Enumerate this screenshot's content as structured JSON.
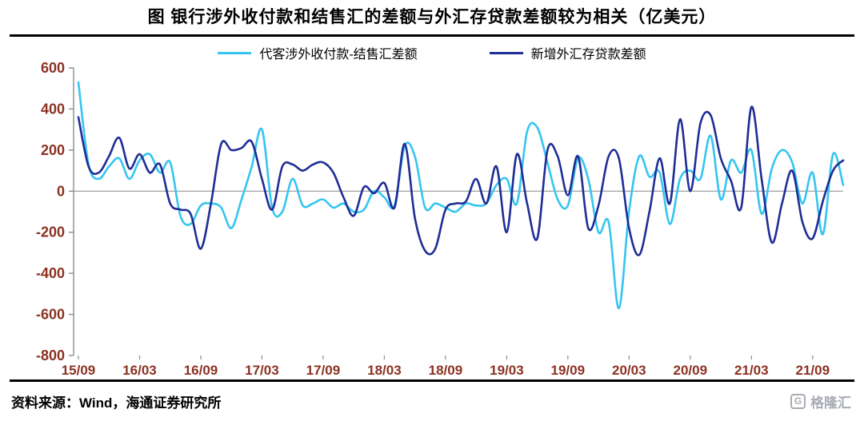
{
  "title": "图  银行涉外收付款和结售汇的差额与外汇存贷款差额较为相关（亿美元）",
  "source_note": "资料来源：Wind，海通证券研究所",
  "watermark": "格隆汇",
  "legend": [
    {
      "label": "代客涉外收付款-结售汇差额",
      "color": "#35C5F0"
    },
    {
      "label": "新增外汇存贷款差额",
      "color": "#1E2D96"
    }
  ],
  "colors": {
    "axis_label": "#8B3222",
    "axis_line": "#8C8C8C",
    "zero_line": "#A6A6A6",
    "series_cyan": "#35C5F0",
    "series_navy": "#1E2D96",
    "watermark_gray": "#A7ABB2"
  },
  "chart_data": {
    "type": "line",
    "title": "银行涉外收付款和结售汇的差额与外汇存贷款差额较为相关",
    "unit": "亿美元",
    "xlabel": "",
    "ylabel": "",
    "ylim": [
      -800,
      600
    ],
    "y_ticks": [
      600,
      400,
      200,
      0,
      -200,
      -400,
      -600,
      -800
    ],
    "grid": false,
    "legend_position": "top",
    "x_tick_labels": [
      "15/09",
      "16/03",
      "16/09",
      "17/03",
      "17/09",
      "18/03",
      "18/09",
      "19/03",
      "19/09",
      "20/03",
      "20/09",
      "21/03",
      "21/09"
    ],
    "x": [
      "15/09",
      "15/10",
      "15/11",
      "15/12",
      "16/01",
      "16/02",
      "16/03",
      "16/04",
      "16/05",
      "16/06",
      "16/07",
      "16/08",
      "16/09",
      "16/10",
      "16/11",
      "16/12",
      "17/01",
      "17/02",
      "17/03",
      "17/04",
      "17/05",
      "17/06",
      "17/07",
      "17/08",
      "17/09",
      "17/10",
      "17/11",
      "17/12",
      "18/01",
      "18/02",
      "18/03",
      "18/04",
      "18/05",
      "18/06",
      "18/07",
      "18/08",
      "18/09",
      "18/10",
      "18/11",
      "18/12",
      "19/01",
      "19/02",
      "19/03",
      "19/04",
      "19/05",
      "19/06",
      "19/07",
      "19/08",
      "19/09",
      "19/10",
      "19/11",
      "19/12",
      "20/01",
      "20/02",
      "20/03",
      "20/04",
      "20/05",
      "20/06",
      "20/07",
      "20/08",
      "20/09",
      "20/10",
      "20/11",
      "20/12",
      "21/01",
      "21/02",
      "21/03",
      "21/04",
      "21/05",
      "21/06",
      "21/07",
      "21/08",
      "21/09",
      "21/10",
      "21/11",
      "21/12"
    ],
    "series": [
      {
        "name": "代客涉外收付款-结售汇差额",
        "color": "#35C5F0",
        "values": [
          530,
          130,
          60,
          120,
          160,
          60,
          150,
          180,
          90,
          140,
          -120,
          -160,
          -70,
          -60,
          -80,
          -180,
          -40,
          120,
          300,
          -80,
          -100,
          60,
          -70,
          -60,
          -40,
          -80,
          -60,
          -100,
          -90,
          0,
          -30,
          -70,
          220,
          170,
          -80,
          -60,
          -80,
          -100,
          -60,
          -70,
          -60,
          30,
          60,
          -60,
          290,
          310,
          140,
          -40,
          -70,
          160,
          60,
          -200,
          -150,
          -570,
          -100,
          170,
          70,
          90,
          -160,
          60,
          100,
          60,
          270,
          -40,
          150,
          90,
          200,
          -110,
          110,
          200,
          140,
          -60,
          90,
          -210,
          180,
          30
        ]
      },
      {
        "name": "新增外汇存贷款差额",
        "color": "#1E2D96",
        "values": [
          360,
          120,
          90,
          170,
          260,
          110,
          180,
          90,
          130,
          -60,
          -90,
          -110,
          -280,
          -60,
          230,
          200,
          210,
          240,
          60,
          -90,
          120,
          130,
          100,
          130,
          140,
          90,
          -30,
          -120,
          20,
          -10,
          40,
          -80,
          230,
          -130,
          -290,
          -280,
          -90,
          -60,
          -50,
          60,
          -60,
          120,
          -200,
          180,
          -60,
          -230,
          200,
          170,
          -20,
          170,
          -180,
          -70,
          170,
          160,
          -180,
          -310,
          -100,
          160,
          -60,
          350,
          0,
          330,
          370,
          160,
          50,
          -80,
          410,
          60,
          -250,
          -60,
          100,
          -150,
          -230,
          -50,
          100,
          150
        ]
      }
    ]
  }
}
